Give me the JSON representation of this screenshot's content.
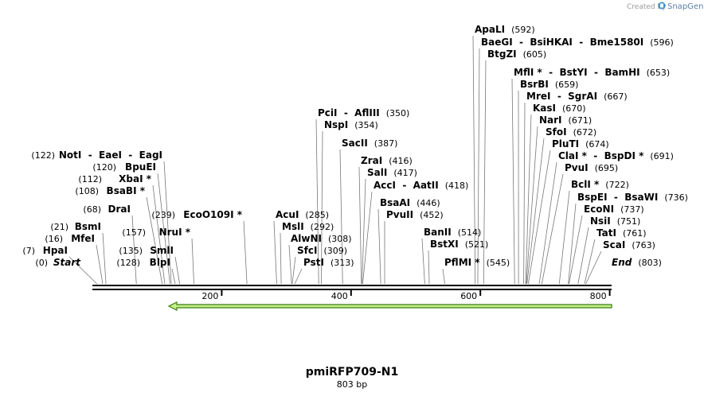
{
  "credit": "Created by",
  "credit_brand": "SnapGene",
  "title": "pmiRFP709-N1",
  "subtitle": "803 bp",
  "sequence_length": 803,
  "ticks": [
    200,
    400,
    600,
    800
  ],
  "colors": {
    "feature_fill": "#c6ef8a",
    "feature_stroke": "#3b7d10",
    "line": "#000000",
    "credit_logo": "#3b8fd6"
  },
  "left_labels": [
    {
      "pos": "(0)",
      "name": "Start",
      "italic": true,
      "bp": 0
    },
    {
      "pos": "(7)",
      "name": "HpaI",
      "bp": 7
    },
    {
      "pos": "(16)",
      "name": "MfeI",
      "bp": 16
    },
    {
      "pos": "(21)",
      "name": "BsmI",
      "bp": 21
    },
    {
      "pos": "(68)",
      "name": "DraI",
      "bp": 68
    },
    {
      "pos": "(108)",
      "name": "BsaBI *",
      "bp": 108
    },
    {
      "pos": "(112)",
      "name": "XbaI *",
      "bp": 112
    },
    {
      "pos": "(120)",
      "name": "BpuEI",
      "bp": 120
    },
    {
      "pos": "(122)",
      "name": "NotI  -  EaeI  -  EagI",
      "bp": 122
    },
    {
      "pos": "(128)",
      "name": "BlpI",
      "bp": 128
    },
    {
      "pos": "(135)",
      "name": "SmlI",
      "bp": 135
    },
    {
      "pos": "(157)",
      "name": "NruI *",
      "bp": 157
    },
    {
      "pos": "(239)",
      "name": "EcoO109I *",
      "bp": 239
    }
  ],
  "right_labels": [
    {
      "name": "PstI",
      "pos": "(313)",
      "bp": 313
    },
    {
      "name": "SfcI",
      "pos": "(309)",
      "bp": 309
    },
    {
      "name": "AlwNI",
      "pos": "(308)",
      "bp": 308
    },
    {
      "name": "MslI",
      "pos": "(292)",
      "bp": 292
    },
    {
      "name": "AcuI",
      "pos": "(285)",
      "bp": 285
    },
    {
      "name": "NspI",
      "pos": "(354)",
      "bp": 354
    },
    {
      "name": "PciI  -  AflIII",
      "pos": "(350)",
      "bp": 350
    },
    {
      "name": "SacII",
      "pos": "(387)",
      "bp": 387
    },
    {
      "name": "ZraI",
      "pos": "(416)",
      "bp": 416
    },
    {
      "name": "SalI",
      "pos": "(417)",
      "bp": 417
    },
    {
      "name": "AccI  -  AatII",
      "pos": "(418)",
      "bp": 418
    },
    {
      "name": "BsaAI",
      "pos": "(446)",
      "bp": 446
    },
    {
      "name": "PvuII",
      "pos": "(452)",
      "bp": 452
    },
    {
      "name": "BanII",
      "pos": "(514)",
      "bp": 514
    },
    {
      "name": "BstXI",
      "pos": "(521)",
      "bp": 521
    },
    {
      "name": "PflMI *",
      "pos": "(545)",
      "bp": 545
    },
    {
      "name": "ApaLI",
      "pos": "(592)",
      "bp": 592
    },
    {
      "name": "BaeGI  -  BsiHKAI  -  Bme1580I",
      "pos": "(596)",
      "bp": 596
    },
    {
      "name": "BtgZI",
      "pos": "(605)",
      "bp": 605
    },
    {
      "name": "MflI *  -  BstYI  -  BamHI",
      "pos": "(653)",
      "bp": 653
    },
    {
      "name": "BsrBI",
      "pos": "(659)",
      "bp": 659
    },
    {
      "name": "MreI  -  SgrAI",
      "pos": "(667)",
      "bp": 667
    },
    {
      "name": "KasI",
      "pos": "(670)",
      "bp": 670
    },
    {
      "name": "NarI",
      "pos": "(671)",
      "bp": 671
    },
    {
      "name": "SfoI",
      "pos": "(672)",
      "bp": 672
    },
    {
      "name": "PluTI",
      "pos": "(674)",
      "bp": 674
    },
    {
      "name": "ClaI *  -  BspDI *",
      "pos": "(691)",
      "bp": 691
    },
    {
      "name": "PvuI",
      "pos": "(695)",
      "bp": 695
    },
    {
      "name": "BclI *",
      "pos": "(722)",
      "bp": 722
    },
    {
      "name": "BspEI  -  BsaWI",
      "pos": "(736)",
      "bp": 736
    },
    {
      "name": "EcoNI",
      "pos": "(737)",
      "bp": 737
    },
    {
      "name": "NsiI",
      "pos": "(751)",
      "bp": 751
    },
    {
      "name": "TatI",
      "pos": "(761)",
      "bp": 761
    },
    {
      "name": "ScaI",
      "pos": "(763)",
      "bp": 763
    },
    {
      "name": "End",
      "pos": "(803)",
      "italic": true,
      "bp": 803
    }
  ],
  "feature": {
    "start_bp": 128,
    "end_bp": 803,
    "direction": "reverse"
  }
}
